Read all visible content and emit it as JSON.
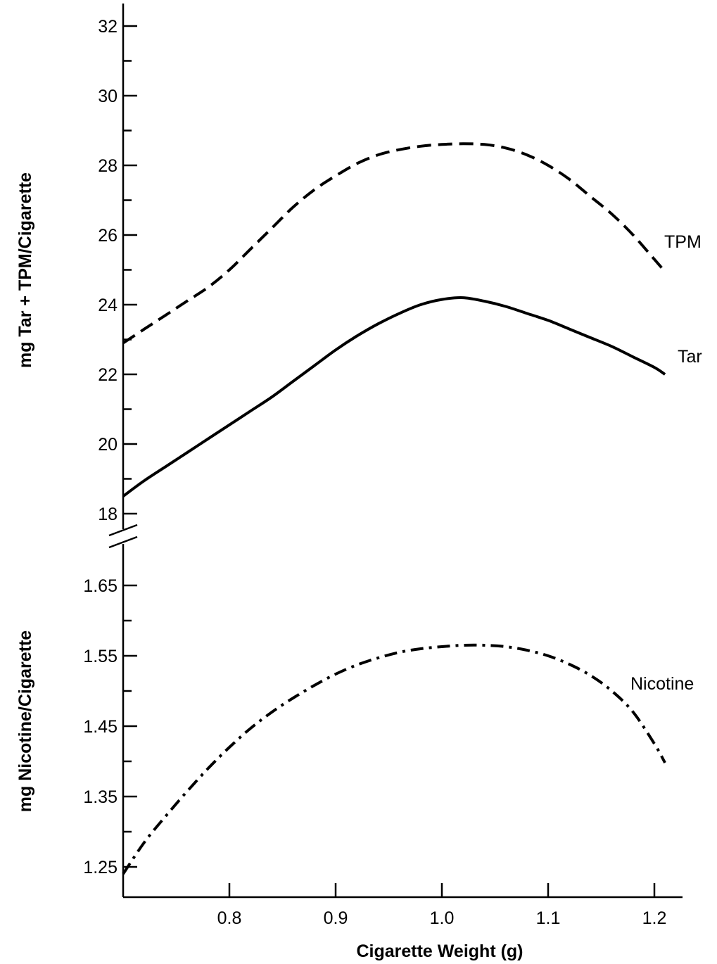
{
  "chart_data": {
    "type": "line",
    "xlabel": "Cigarette Weight (g)",
    "x_ticks": [
      0.8,
      0.9,
      1.0,
      1.1,
      1.2
    ],
    "x_tick_labels": [
      "0.8",
      "0.9",
      "1.0",
      "1.1",
      "1.2"
    ],
    "xlim": [
      0.7,
      1.225
    ],
    "upper_panel": {
      "ylabel": "mg Tar + TPM/Cigarette",
      "ylim": [
        18,
        32
      ],
      "y_ticks": [
        18,
        20,
        22,
        24,
        26,
        28,
        30,
        32
      ],
      "y_tick_labels": [
        "18",
        "20",
        "22",
        "24",
        "26",
        "28",
        "30",
        "32"
      ],
      "series": [
        {
          "name": "TPM",
          "style": "dashed",
          "x": [
            0.7,
            0.72,
            0.74,
            0.76,
            0.78,
            0.8,
            0.82,
            0.84,
            0.86,
            0.88,
            0.9,
            0.92,
            0.94,
            0.96,
            0.98,
            1.0,
            1.02,
            1.04,
            1.06,
            1.08,
            1.1,
            1.12,
            1.14,
            1.16,
            1.18,
            1.2,
            1.21
          ],
          "y": [
            22.9,
            23.3,
            23.7,
            24.1,
            24.5,
            25.0,
            25.6,
            26.2,
            26.8,
            27.3,
            27.7,
            28.05,
            28.3,
            28.45,
            28.55,
            28.6,
            28.62,
            28.6,
            28.5,
            28.3,
            28.0,
            27.6,
            27.1,
            26.6,
            26.0,
            25.3,
            24.95
          ]
        },
        {
          "name": "Tar",
          "style": "solid",
          "x": [
            0.7,
            0.72,
            0.74,
            0.76,
            0.78,
            0.8,
            0.82,
            0.84,
            0.86,
            0.88,
            0.9,
            0.92,
            0.94,
            0.96,
            0.98,
            1.0,
            1.02,
            1.04,
            1.06,
            1.08,
            1.1,
            1.12,
            1.14,
            1.16,
            1.18,
            1.2,
            1.21
          ],
          "y": [
            18.5,
            18.95,
            19.35,
            19.75,
            20.15,
            20.55,
            20.95,
            21.35,
            21.8,
            22.25,
            22.7,
            23.1,
            23.45,
            23.75,
            24.0,
            24.15,
            24.2,
            24.1,
            23.95,
            23.75,
            23.55,
            23.3,
            23.05,
            22.8,
            22.5,
            22.2,
            22.0
          ]
        }
      ]
    },
    "lower_panel": {
      "ylabel": "mg Nicotine/Cigarette",
      "ylim": [
        1.23,
        1.7
      ],
      "y_ticks": [
        1.25,
        1.35,
        1.45,
        1.55,
        1.65
      ],
      "y_tick_labels": [
        "1.25",
        "1.35",
        "1.45",
        "1.55",
        "1.65"
      ],
      "series": [
        {
          "name": "Nicotine",
          "style": "dash-dot",
          "x": [
            0.7,
            0.72,
            0.74,
            0.76,
            0.78,
            0.8,
            0.82,
            0.84,
            0.86,
            0.88,
            0.9,
            0.92,
            0.94,
            0.96,
            0.98,
            1.0,
            1.02,
            1.04,
            1.06,
            1.08,
            1.1,
            1.12,
            1.14,
            1.16,
            1.18,
            1.2,
            1.21
          ],
          "y": [
            1.24,
            1.285,
            1.322,
            1.357,
            1.39,
            1.42,
            1.447,
            1.47,
            1.49,
            1.508,
            1.524,
            1.537,
            1.547,
            1.555,
            1.56,
            1.563,
            1.565,
            1.565,
            1.563,
            1.558,
            1.55,
            1.538,
            1.522,
            1.5,
            1.47,
            1.425,
            1.398
          ]
        }
      ]
    },
    "axis_break": true
  }
}
